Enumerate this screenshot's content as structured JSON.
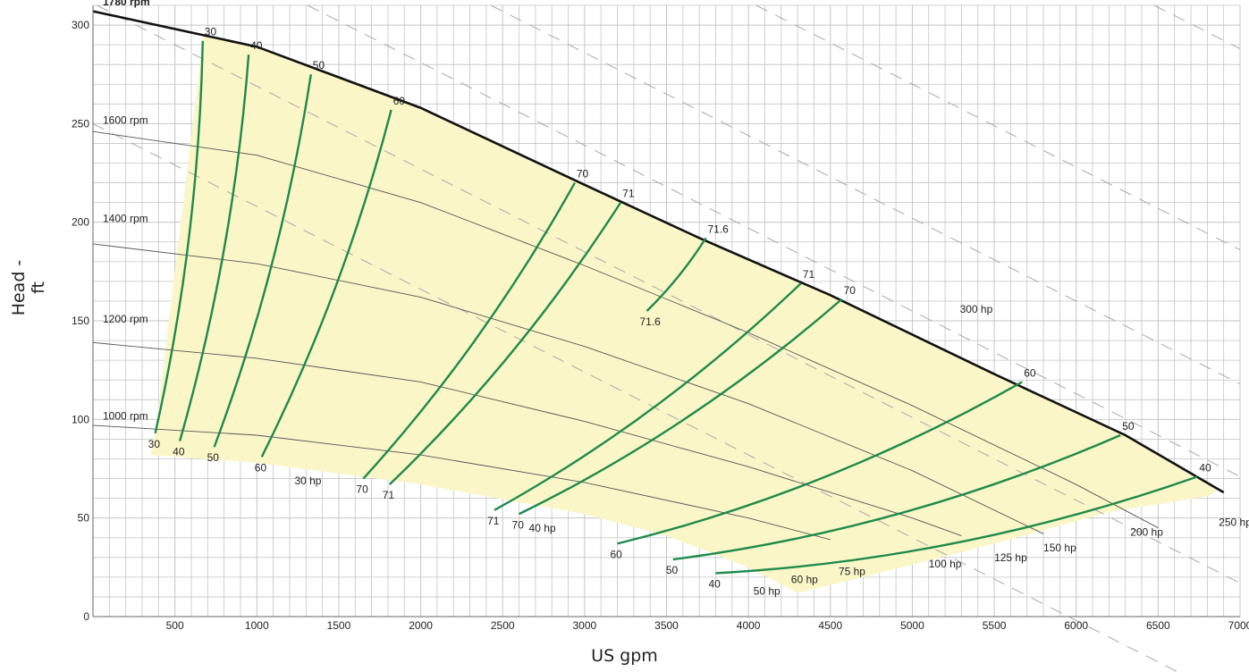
{
  "chart_data": {
    "type": "line",
    "xlabel": "US gpm",
    "ylabel": "Head - ft",
    "xlim": [
      0,
      7000
    ],
    "ylim": [
      0,
      310
    ],
    "x_ticks": [
      500,
      1000,
      1500,
      2000,
      2500,
      3000,
      3500,
      4000,
      4500,
      5000,
      5500,
      6000,
      6500,
      7000
    ],
    "y_ticks": [
      0,
      50,
      100,
      150,
      200,
      250,
      300
    ],
    "grid": true,
    "colors": {
      "region_fill": "#fbf6c8",
      "efficiency_line": "#1e8a4a",
      "power_line_inside": "#7a4a32",
      "power_line_outside": "#a9a9a9",
      "speed_curve": "#555555",
      "max_curve": "#111111",
      "grid": "#c4c4c4"
    },
    "speed_curves": [
      {
        "name": "1780 rpm",
        "label_at": [
          60,
          310
        ],
        "points": [
          [
            0,
            307
          ],
          [
            1000,
            289
          ],
          [
            2000,
            258
          ],
          [
            3000,
            219
          ],
          [
            3700,
            192
          ],
          [
            4500,
            163
          ],
          [
            5500,
            123
          ],
          [
            6300,
            92
          ],
          [
            6900,
            63
          ]
        ]
      },
      {
        "name": "1600 rpm",
        "label_at": [
          60,
          250
        ],
        "points": [
          [
            0,
            246
          ],
          [
            1000,
            234
          ],
          [
            2000,
            210
          ],
          [
            3000,
            178
          ],
          [
            4000,
            144
          ],
          [
            5000,
            107
          ],
          [
            6000,
            67
          ],
          [
            6500,
            45
          ]
        ]
      },
      {
        "name": "1400 rpm",
        "label_at": [
          60,
          200
        ],
        "points": [
          [
            0,
            189
          ],
          [
            1000,
            179
          ],
          [
            2000,
            162
          ],
          [
            3000,
            137
          ],
          [
            4000,
            108
          ],
          [
            5000,
            74
          ],
          [
            5800,
            42
          ]
        ]
      },
      {
        "name": "1200 rpm",
        "label_at": [
          60,
          149
        ],
        "points": [
          [
            0,
            139
          ],
          [
            1000,
            131
          ],
          [
            2000,
            119
          ],
          [
            3000,
            99
          ],
          [
            4000,
            76
          ],
          [
            5000,
            50
          ],
          [
            5300,
            41
          ]
        ]
      },
      {
        "name": "1000 rpm",
        "label_at": [
          60,
          100
        ],
        "points": [
          [
            0,
            97
          ],
          [
            1000,
            92
          ],
          [
            2000,
            82
          ],
          [
            3000,
            68
          ],
          [
            4000,
            50
          ],
          [
            4500,
            39
          ]
        ]
      }
    ],
    "min_boundary": [
      [
        350,
        82
      ],
      [
        1000,
        78
      ],
      [
        2000,
        67
      ],
      [
        3000,
        52
      ],
      [
        3500,
        41
      ],
      [
        4000,
        25
      ],
      [
        4300,
        12
      ],
      [
        4700,
        20
      ],
      [
        5500,
        37
      ],
      [
        6200,
        53
      ],
      [
        6800,
        61
      ]
    ],
    "efficiency_lines": [
      {
        "value": "30",
        "low": [
          380,
          93
        ],
        "high": [
          670,
          292
        ],
        "label_low": "30",
        "label_high": "30"
      },
      {
        "value": "40",
        "low": [
          530,
          89
        ],
        "high": [
          950,
          285
        ],
        "label_low": "40",
        "label_high": "40"
      },
      {
        "value": "50",
        "low": [
          740,
          86
        ],
        "high": [
          1330,
          275
        ],
        "label_low": "50",
        "label_high": "50"
      },
      {
        "value": "60",
        "low": [
          1030,
          81
        ],
        "high": [
          1820,
          257
        ],
        "label_low": "60",
        "label_high": "60"
      },
      {
        "value": "70",
        "low": [
          1650,
          70
        ],
        "high": [
          2940,
          220
        ],
        "label_low": "70",
        "label_high": "70"
      },
      {
        "value": "71",
        "low": [
          1810,
          67
        ],
        "high": [
          3220,
          210
        ],
        "label_low": "71",
        "label_high": "71"
      },
      {
        "value": "71.6",
        "low": [
          3380,
          155
        ],
        "high": [
          3740,
          192
        ],
        "label_low": "71.6",
        "label_high": "71.6"
      },
      {
        "value": "71",
        "low": [
          2450,
          54
        ],
        "high": [
          4320,
          169
        ],
        "label_low": "71",
        "label_high": "71"
      },
      {
        "value": "70",
        "low": [
          2600,
          52
        ],
        "high": [
          4570,
          161
        ],
        "label_low": "70",
        "label_high": "70"
      },
      {
        "value": "60",
        "low": [
          3200,
          37
        ],
        "high": [
          5670,
          119
        ],
        "label_low": "60",
        "label_high": "60"
      },
      {
        "value": "50",
        "low": [
          3540,
          29
        ],
        "high": [
          6270,
          92
        ],
        "label_low": "50",
        "label_high": "50"
      },
      {
        "value": "40",
        "low": [
          3800,
          22
        ],
        "high": [
          6740,
          71
        ],
        "label_low": "40",
        "label_high": "40"
      }
    ],
    "power_lines": [
      {
        "name": "30 hp",
        "label_at": [
          1230,
          67
        ],
        "y0_at_x0": 250
      },
      {
        "name": "40 hp",
        "label_at": [
          2660,
          43
        ],
        "y0_at_x0": 311
      },
      {
        "name": "50 hp",
        "label_at": [
          4030,
          11
        ],
        "y0_at_x0": 365
      },
      {
        "name": "60 hp",
        "label_at": [
          4260,
          17
        ],
        "y0_at_x0": 412
      },
      {
        "name": "75 hp",
        "label_at": [
          4550,
          21
        ],
        "y0_at_x0": 480
      },
      {
        "name": "100 hp",
        "label_at": [
          5100,
          25
        ],
        "y0_at_x0": 582
      },
      {
        "name": "125 hp",
        "label_at": [
          5500,
          28
        ],
        "y0_at_x0": 672
      },
      {
        "name": "150 hp",
        "label_at": [
          5800,
          33
        ],
        "y0_at_x0": 754
      },
      {
        "name": "200 hp",
        "label_at": [
          6330,
          41
        ],
        "y0_at_x0": 880
      },
      {
        "name": "250 hp",
        "label_at": [
          6870,
          46
        ],
        "y0_at_x0": 988
      },
      {
        "name": "300 hp",
        "label_at": [
          5290,
          154
        ],
        "y0_at_x0": 1140
      }
    ],
    "power_slope_ft_per_gpm": -0.042,
    "power_region_end_x": 7000
  }
}
